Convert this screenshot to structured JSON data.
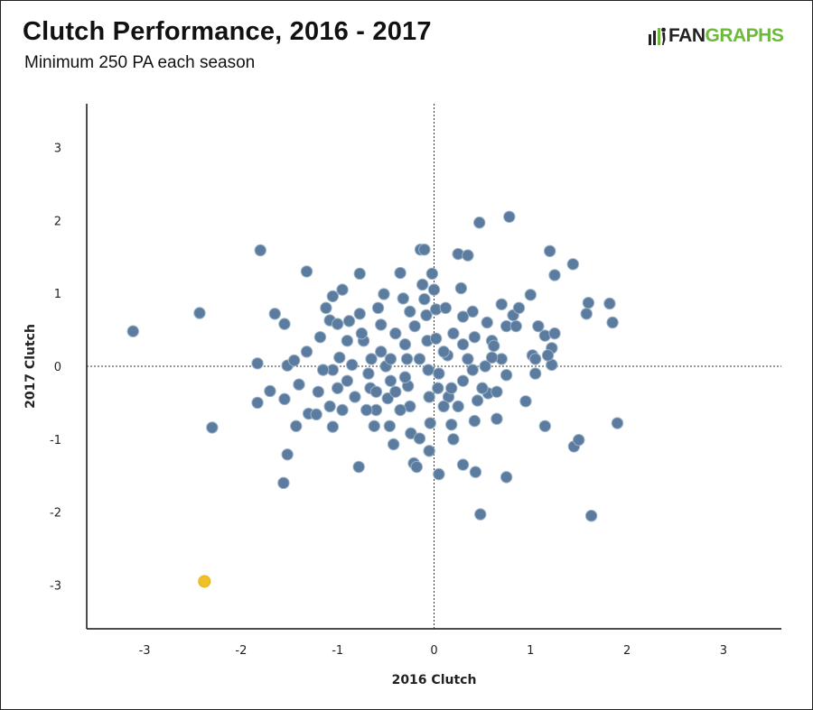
{
  "header": {
    "title": "Clutch Performance, 2016 - 2017",
    "subtitle": "Minimum 250 PA each season",
    "logo_text": "FANGRAPHS"
  },
  "colors": {
    "point": "#5b7c9f",
    "point_stroke": "#9cb2c8",
    "highlight": "#f0c02a",
    "brand_green": "#6dba3a"
  },
  "chart_data": {
    "type": "scatter",
    "title": "Clutch Performance, 2016 - 2017",
    "subtitle": "Minimum 250 PA each season",
    "xlabel": "2016 Clutch",
    "ylabel": "2017 Clutch",
    "xlim": [
      -3.6,
      3.6
    ],
    "ylim": [
      -3.6,
      3.6
    ],
    "xticks": [
      -3,
      -2,
      -1,
      0,
      1,
      2,
      3
    ],
    "yticks": [
      -3,
      -2,
      -1,
      0,
      1,
      2,
      3
    ],
    "grid": false,
    "zero_lines": "dotted",
    "highlight": [
      {
        "x": -2.38,
        "y": -2.95
      }
    ],
    "points": [
      [
        -3.12,
        0.48
      ],
      [
        -2.43,
        0.73
      ],
      [
        -2.3,
        -0.84
      ],
      [
        -1.8,
        1.59
      ],
      [
        -1.65,
        0.72
      ],
      [
        -1.55,
        0.58
      ],
      [
        -1.83,
        0.04
      ],
      [
        -1.83,
        -0.5
      ],
      [
        -1.7,
        -0.34
      ],
      [
        -1.55,
        -0.45
      ],
      [
        -1.52,
        0.01
      ],
      [
        -1.45,
        0.08
      ],
      [
        -1.43,
        -0.82
      ],
      [
        -1.52,
        -1.21
      ],
      [
        -1.56,
        -1.6
      ],
      [
        -1.32,
        1.3
      ],
      [
        -1.32,
        0.2
      ],
      [
        -1.3,
        -0.65
      ],
      [
        -1.22,
        -0.66
      ],
      [
        -1.18,
        0.4
      ],
      [
        -1.12,
        0.8
      ],
      [
        -1.08,
        0.63
      ],
      [
        -1.05,
        0.96
      ],
      [
        -1.0,
        0.58
      ],
      [
        -0.95,
        1.05
      ],
      [
        -0.98,
        0.12
      ],
      [
        -1.05,
        -0.05
      ],
      [
        -1.08,
        -0.55
      ],
      [
        -1.05,
        -0.83
      ],
      [
        -0.88,
        0.62
      ],
      [
        -0.85,
        0.02
      ],
      [
        -0.82,
        -0.42
      ],
      [
        -0.78,
        -1.38
      ],
      [
        -0.77,
        1.27
      ],
      [
        -0.77,
        0.72
      ],
      [
        -0.73,
        0.35
      ],
      [
        -0.68,
        -0.1
      ],
      [
        -0.66,
        -0.3
      ],
      [
        -0.62,
        -0.82
      ],
      [
        -0.58,
        0.8
      ],
      [
        -0.55,
        0.57
      ],
      [
        -0.52,
        0.99
      ],
      [
        -0.5,
        0.0
      ],
      [
        -0.48,
        -0.44
      ],
      [
        -0.46,
        -0.82
      ],
      [
        -0.42,
        -1.07
      ],
      [
        -0.4,
        -0.35
      ],
      [
        -0.35,
        1.28
      ],
      [
        -0.32,
        0.93
      ],
      [
        -0.3,
        0.3
      ],
      [
        -0.28,
        0.1
      ],
      [
        -0.27,
        -0.27
      ],
      [
        -0.25,
        -0.55
      ],
      [
        -0.24,
        -0.92
      ],
      [
        -0.21,
        -1.33
      ],
      [
        -0.18,
        -1.38
      ],
      [
        -0.15,
        -0.99
      ],
      [
        -0.14,
        1.6
      ],
      [
        -0.1,
        1.6
      ],
      [
        -0.12,
        1.12
      ],
      [
        -0.1,
        0.92
      ],
      [
        -0.08,
        0.7
      ],
      [
        -0.07,
        0.35
      ],
      [
        -0.06,
        -0.05
      ],
      [
        -0.05,
        -0.42
      ],
      [
        -0.04,
        -0.78
      ],
      [
        -0.05,
        -1.16
      ],
      [
        -0.02,
        1.27
      ],
      [
        0.0,
        1.05
      ],
      [
        0.02,
        0.78
      ],
      [
        0.02,
        0.38
      ],
      [
        0.04,
        -0.3
      ],
      [
        0.05,
        -1.48
      ],
      [
        0.12,
        0.8
      ],
      [
        0.14,
        0.15
      ],
      [
        0.15,
        -0.42
      ],
      [
        0.18,
        -0.8
      ],
      [
        0.2,
        -1.0
      ],
      [
        0.25,
        1.54
      ],
      [
        0.28,
        1.07
      ],
      [
        0.3,
        0.3
      ],
      [
        0.3,
        -0.2
      ],
      [
        0.3,
        -1.35
      ],
      [
        0.35,
        1.52
      ],
      [
        0.4,
        0.75
      ],
      [
        0.42,
        0.4
      ],
      [
        0.45,
        -0.47
      ],
      [
        0.43,
        -1.45
      ],
      [
        0.47,
        1.97
      ],
      [
        0.48,
        -2.03
      ],
      [
        0.53,
        0.0
      ],
      [
        0.56,
        -0.37
      ],
      [
        0.6,
        0.35
      ],
      [
        0.62,
        0.28
      ],
      [
        0.65,
        -0.72
      ],
      [
        0.7,
        0.85
      ],
      [
        0.75,
        0.55
      ],
      [
        0.75,
        -1.52
      ],
      [
        0.78,
        2.05
      ],
      [
        0.82,
        0.7
      ],
      [
        0.88,
        0.8
      ],
      [
        0.95,
        -0.48
      ],
      [
        1.0,
        0.98
      ],
      [
        1.02,
        0.15
      ],
      [
        1.05,
        -0.1
      ],
      [
        1.15,
        -0.82
      ],
      [
        1.15,
        0.42
      ],
      [
        1.2,
        1.58
      ],
      [
        1.22,
        0.25
      ],
      [
        1.25,
        0.45
      ],
      [
        1.25,
        1.25
      ],
      [
        1.22,
        0.02
      ],
      [
        1.44,
        1.4
      ],
      [
        1.45,
        -1.1
      ],
      [
        1.5,
        -1.01
      ],
      [
        1.58,
        0.72
      ],
      [
        1.6,
        0.87
      ],
      [
        1.63,
        -2.05
      ],
      [
        1.82,
        0.86
      ],
      [
        1.85,
        0.6
      ],
      [
        1.9,
        -0.78
      ],
      [
        -0.9,
        -0.2
      ],
      [
        -0.6,
        -0.6
      ],
      [
        -0.55,
        0.2
      ],
      [
        -0.45,
        -0.2
      ],
      [
        -0.35,
        -0.6
      ],
      [
        -0.2,
        0.55
      ],
      [
        0.1,
        -0.55
      ],
      [
        0.2,
        0.45
      ],
      [
        0.35,
        0.1
      ],
      [
        0.5,
        -0.3
      ],
      [
        0.55,
        0.6
      ],
      [
        0.7,
        0.1
      ],
      [
        0.85,
        0.55
      ],
      [
        -1.2,
        -0.35
      ],
      [
        -0.75,
        0.45
      ],
      [
        -0.3,
        -0.15
      ],
      [
        0.25,
        -0.55
      ],
      [
        0.65,
        -0.35
      ],
      [
        -0.65,
        0.1
      ],
      [
        0.1,
        0.2
      ],
      [
        0.4,
        -0.05
      ],
      [
        -0.95,
        -0.6
      ],
      [
        1.05,
        0.1
      ],
      [
        -0.15,
        0.1
      ],
      [
        0.6,
        0.12
      ],
      [
        0.75,
        -0.12
      ],
      [
        -1.4,
        -0.25
      ],
      [
        -1.15,
        -0.05
      ],
      [
        -0.9,
        0.35
      ],
      [
        -0.7,
        -0.6
      ],
      [
        -0.4,
        0.45
      ],
      [
        -0.25,
        0.75
      ],
      [
        0.18,
        -0.3
      ],
      [
        0.42,
        -0.75
      ],
      [
        -0.6,
        -0.35
      ],
      [
        0.3,
        0.68
      ],
      [
        -0.45,
        0.1
      ],
      [
        0.05,
        -0.1
      ],
      [
        1.18,
        0.15
      ],
      [
        1.08,
        0.55
      ],
      [
        -1.0,
        -0.3
      ]
    ]
  }
}
